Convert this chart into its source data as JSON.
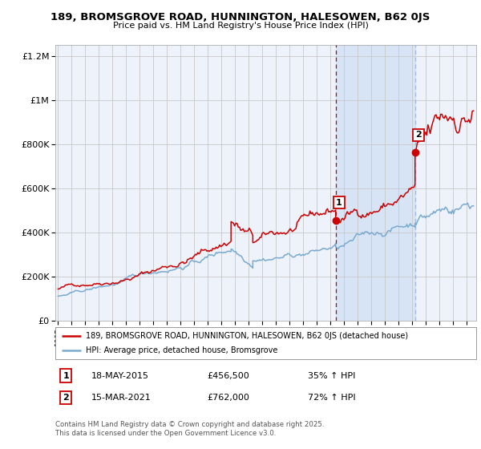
{
  "title": "189, BROMSGROVE ROAD, HUNNINGTON, HALESOWEN, B62 0JS",
  "subtitle": "Price paid vs. HM Land Registry's House Price Index (HPI)",
  "red_label": "189, BROMSGROVE ROAD, HUNNINGTON, HALESOWEN, B62 0JS (detached house)",
  "blue_label": "HPI: Average price, detached house, Bromsgrove",
  "footnote": "Contains HM Land Registry data © Crown copyright and database right 2025.\nThis data is licensed under the Open Government Licence v3.0.",
  "sale1_date": "18-MAY-2015",
  "sale1_price": 456500,
  "sale1_pct": "35%",
  "sale2_date": "15-MAR-2021",
  "sale2_price": 762000,
  "sale2_pct": "72%",
  "vline1_x": 2015.38,
  "vline2_x": 2021.21,
  "shade_start": 2015.38,
  "shade_end": 2021.21,
  "ylim": [
    0,
    1250000
  ],
  "xlim_start": 1994.8,
  "xlim_end": 2025.7,
  "background_color": "#ffffff",
  "plot_bg_color": "#edf2fb",
  "shade_color": "#d6e4f5",
  "grid_color": "#c8c8c8",
  "red_color": "#cc0000",
  "blue_color": "#7aaad0",
  "marker1_x": 2015.38,
  "marker1_y": 456500,
  "marker2_x": 2021.21,
  "marker2_y": 762000,
  "yticks": [
    0,
    200000,
    400000,
    600000,
    800000,
    1000000,
    1200000
  ],
  "ytick_labels": [
    "£0",
    "£200K",
    "£400K",
    "£600K",
    "£800K",
    "£1M",
    "£1.2M"
  ]
}
